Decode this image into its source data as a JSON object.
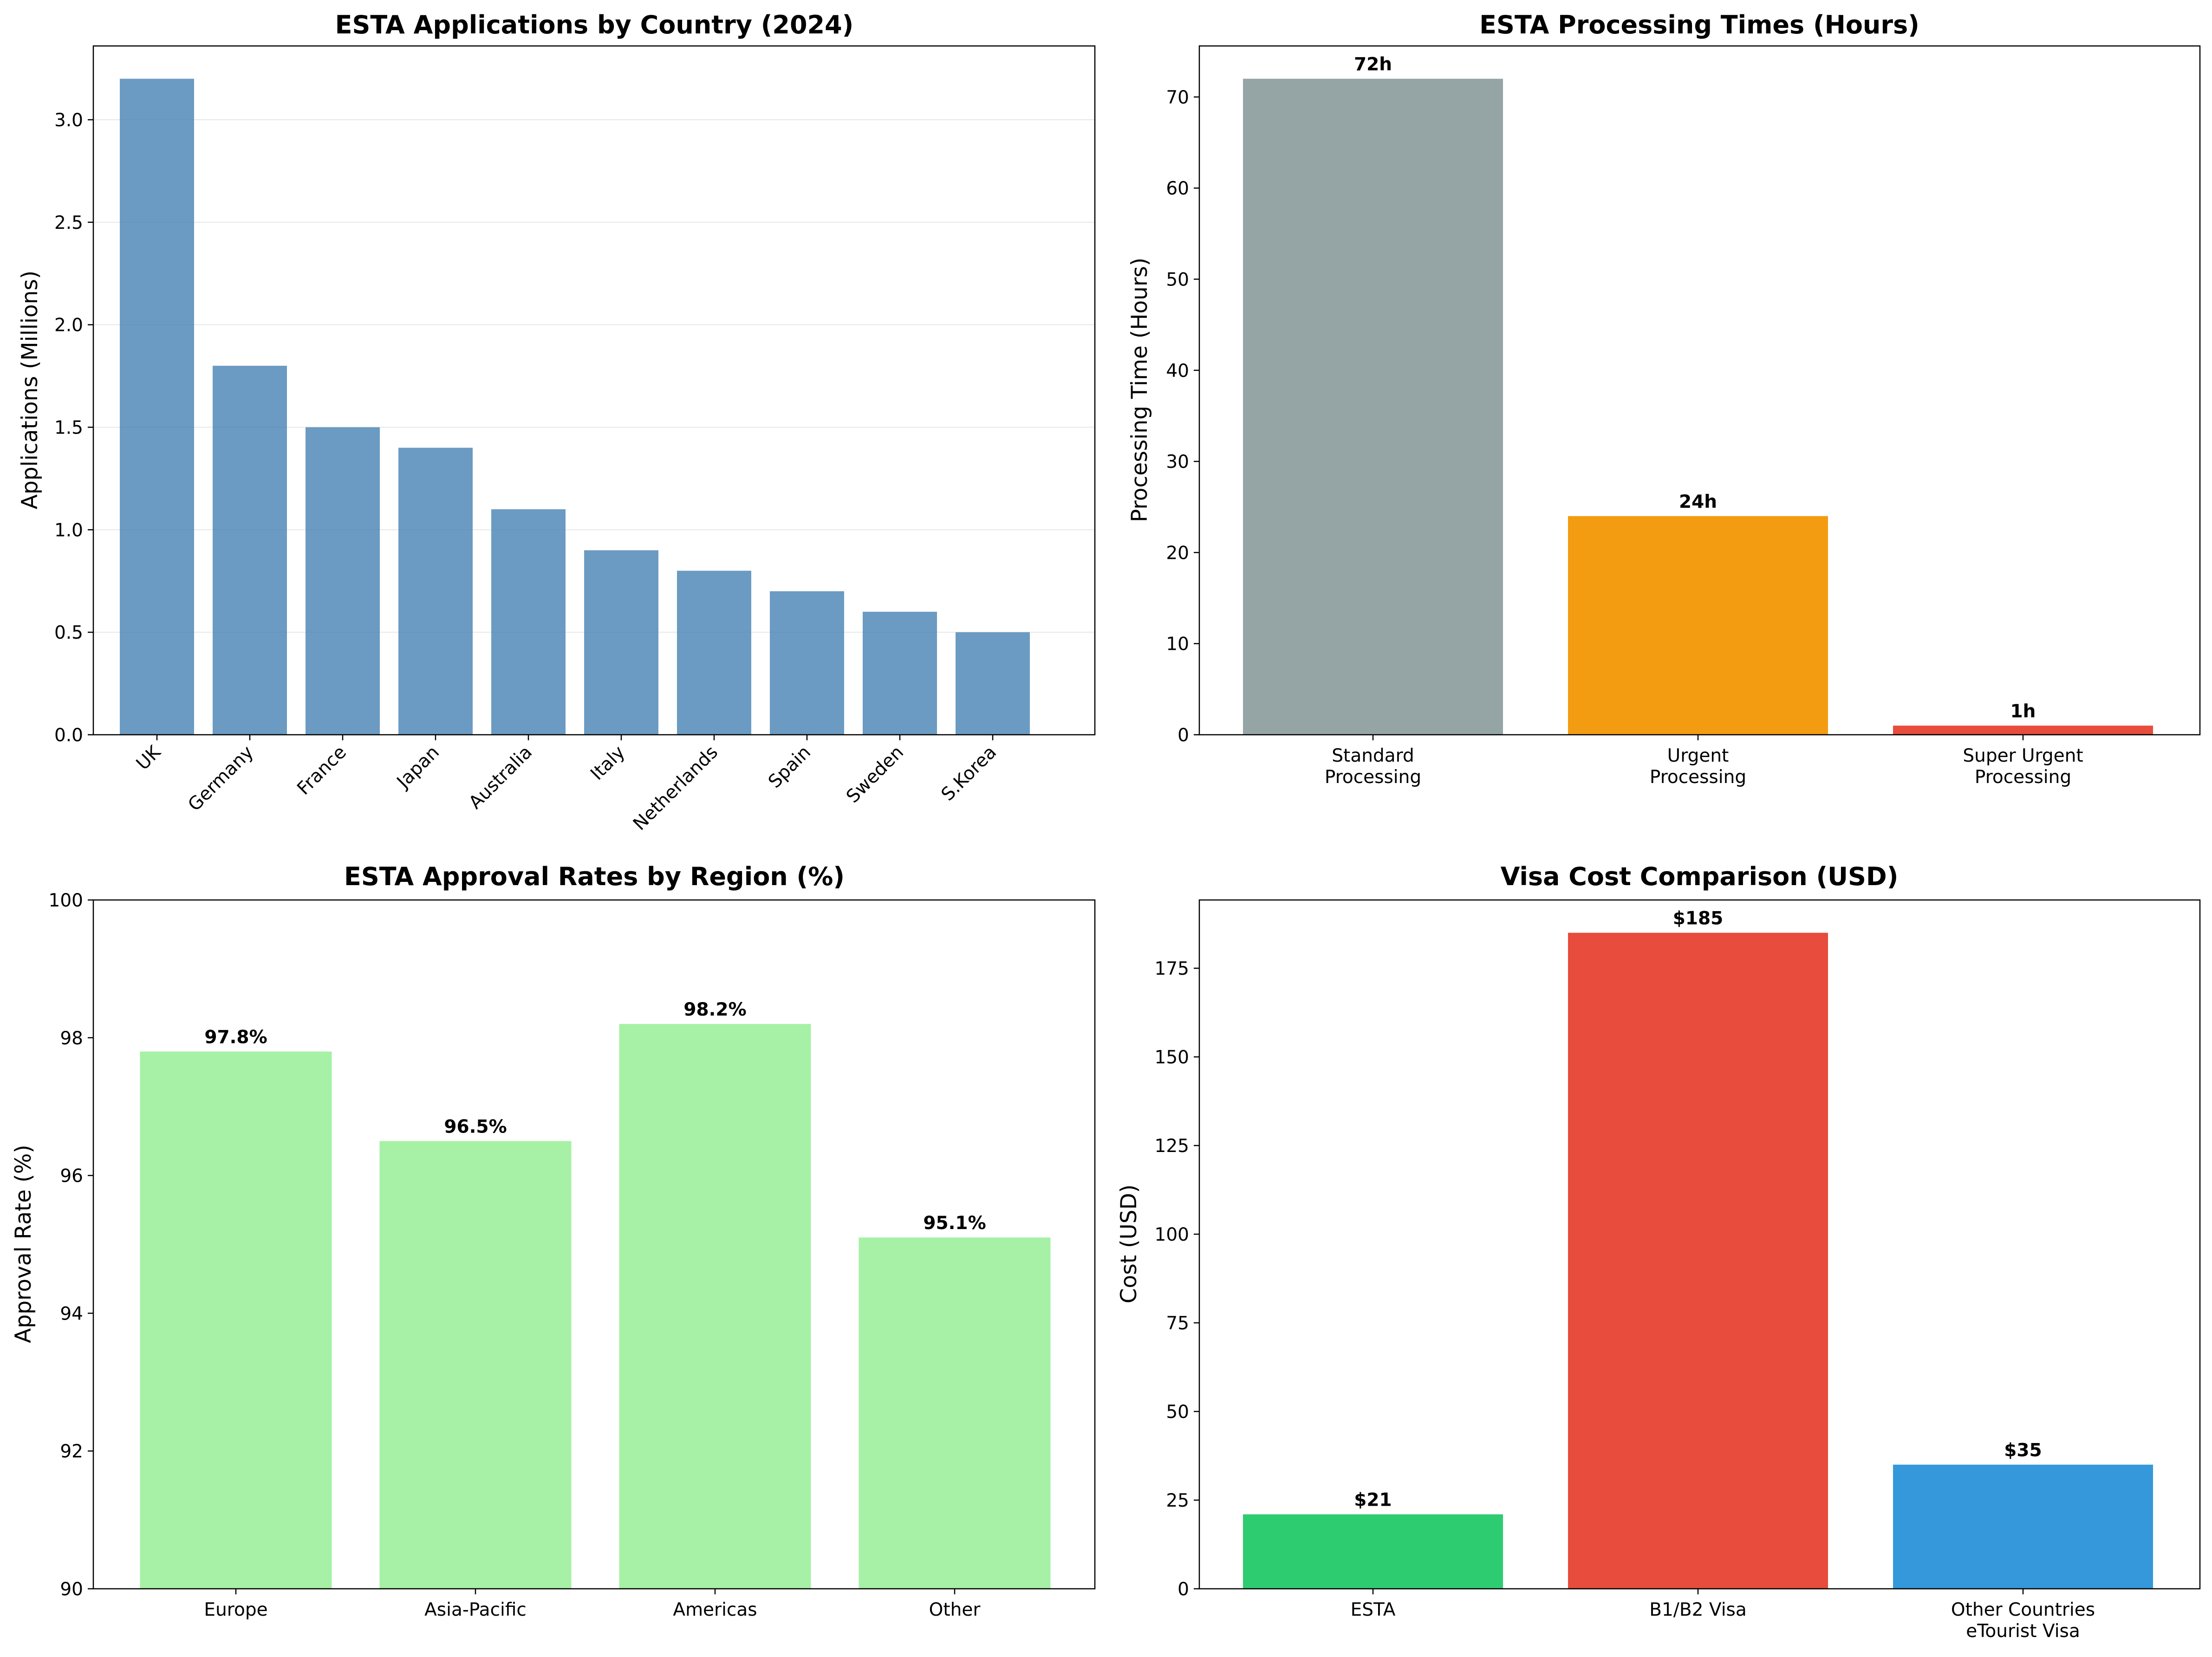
{
  "chart_data": [
    {
      "type": "bar",
      "title": "ESTA Applications by Country (2024)",
      "xlabel": "",
      "ylabel": "Applications (Millions)",
      "categories": [
        "UK",
        "Germany",
        "France",
        "Japan",
        "Australia",
        "Italy",
        "Netherlands",
        "Spain",
        "Sweden",
        "S.Korea"
      ],
      "values": [
        3.2,
        1.8,
        1.5,
        1.4,
        1.1,
        0.9,
        0.8,
        0.7,
        0.6,
        0.5
      ],
      "ylim": [
        0,
        3.36
      ],
      "yticks": [
        0.0,
        0.5,
        1.0,
        1.5,
        2.0,
        2.5,
        3.0
      ],
      "ytick_labels": [
        "0.0",
        "0.5",
        "1.0",
        "1.5",
        "2.0",
        "2.5",
        "3.0"
      ],
      "grid": "y",
      "color": "#4682b4",
      "tick_rotation": 45
    },
    {
      "type": "bar",
      "title": "ESTA Processing Times (Hours)",
      "xlabel": "",
      "ylabel": "Processing Time (Hours)",
      "categories": [
        "Standard\nProcessing",
        "Urgent\nProcessing",
        "Super Urgent\nProcessing"
      ],
      "values": [
        72,
        24,
        1
      ],
      "value_labels": [
        "72h",
        "24h",
        "1h"
      ],
      "colors": [
        "#95a5a6",
        "#f39c12",
        "#e74c3c"
      ],
      "ylim": [
        0,
        75.6
      ],
      "yticks": [
        0,
        10,
        20,
        30,
        40,
        50,
        60,
        70
      ],
      "ytick_labels": [
        "0",
        "10",
        "20",
        "30",
        "40",
        "50",
        "60",
        "70"
      ],
      "grid": "none"
    },
    {
      "type": "bar",
      "title": "ESTA Approval Rates by Region (%)",
      "xlabel": "",
      "ylabel": "Approval Rate (%)",
      "categories": [
        "Europe",
        "Asia-Pacific",
        "Americas",
        "Other"
      ],
      "values": [
        97.8,
        96.5,
        98.2,
        95.1
      ],
      "value_labels": [
        "97.8%",
        "96.5%",
        "98.2%",
        "95.1%"
      ],
      "color": "#90ee90",
      "ylim": [
        90,
        100
      ],
      "yticks": [
        90,
        92,
        94,
        96,
        98,
        100
      ],
      "ytick_labels": [
        "90",
        "92",
        "94",
        "96",
        "98",
        "100"
      ],
      "grid": "none"
    },
    {
      "type": "bar",
      "title": "Visa Cost Comparison (USD)",
      "xlabel": "",
      "ylabel": "Cost (USD)",
      "categories": [
        "ESTA",
        "B1/B2 Visa",
        "Other Countries\neTourist Visa"
      ],
      "values": [
        21,
        185,
        35
      ],
      "value_labels": [
        "$21",
        "$185",
        "$35"
      ],
      "colors": [
        "#2ecc71",
        "#e74c3c",
        "#3498db"
      ],
      "ylim": [
        0,
        194.25
      ],
      "yticks": [
        0,
        25,
        50,
        75,
        100,
        125,
        150,
        175
      ],
      "ytick_labels": [
        "0",
        "25",
        "50",
        "75",
        "100",
        "125",
        "150",
        "175"
      ],
      "grid": "none"
    }
  ]
}
